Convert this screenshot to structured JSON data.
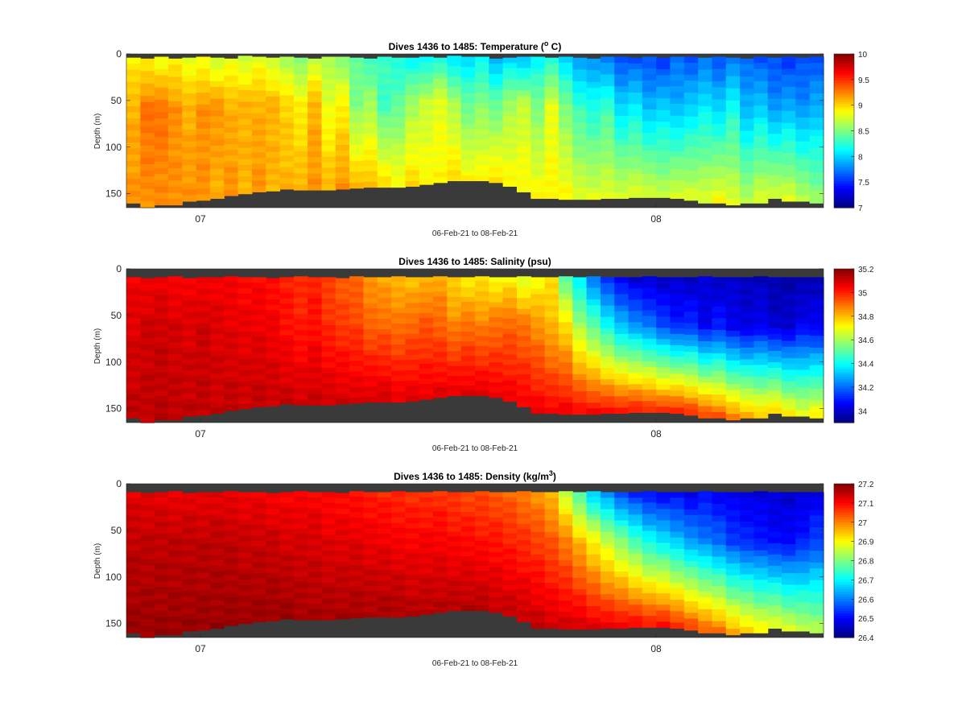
{
  "chart_data": [
    {
      "type": "heatmap",
      "title": "Dives 1436 to 1485: Temperature (",
      "title_sup": "o",
      "title_tail": " C)",
      "xlabel": "06-Feb-21 to 08-Feb-21",
      "ylabel": "Depth (m)",
      "x_ticks": [
        "07",
        "08"
      ],
      "y_ticks": [
        "0",
        "50",
        "100",
        "150"
      ],
      "y_reversed": true,
      "ylim": [
        0,
        165
      ],
      "colorbar": {
        "min": 7,
        "max": 10,
        "ticks": [
          "10",
          "9.5",
          "9",
          "8.5",
          "8",
          "7.5",
          "7"
        ],
        "colormap": "jet"
      },
      "background_color": "#3a3a3a",
      "columns": 50,
      "surface_values": [
        8.9,
        8.9,
        8.8,
        8.9,
        8.8,
        8.8,
        8.7,
        8.8,
        8.7,
        8.8,
        8.7,
        8.6,
        8.5,
        8.7,
        8.6,
        8.5,
        8.4,
        8.3,
        8.3,
        8.2,
        8.1,
        8.1,
        8.2,
        8.0,
        8.0,
        8.1,
        7.9,
        8.0,
        7.9,
        8.1,
        8.2,
        8.0,
        7.8,
        7.8,
        7.7,
        7.6,
        7.6,
        7.6,
        7.5,
        7.7,
        7.6,
        7.7,
        7.6,
        7.7,
        7.7,
        7.6,
        7.6,
        7.5,
        7.6,
        7.6
      ],
      "mid_values": [
        9.1,
        9.3,
        9.3,
        9.2,
        9.1,
        9.2,
        9.2,
        9.1,
        9.1,
        9.1,
        9.1,
        9.0,
        8.9,
        9.1,
        8.8,
        8.9,
        8.5,
        8.6,
        8.3,
        8.4,
        8.6,
        8.7,
        8.8,
        8.6,
        8.4,
        8.5,
        8.4,
        8.6,
        8.7,
        8.5,
        8.8,
        8.5,
        8.3,
        8.2,
        8.3,
        8.0,
        8.1,
        7.9,
        8.0,
        7.9,
        8.0,
        8.1,
        8.0,
        8.2,
        7.9,
        8.0,
        7.8,
        7.9,
        7.8,
        7.9
      ],
      "deep_values": [
        9.2,
        9.2,
        9.2,
        9.2,
        9.2,
        9.2,
        9.1,
        9.2,
        9.1,
        9.2,
        9.1,
        9.1,
        9.1,
        9.2,
        9.1,
        9.2,
        9.1,
        9.1,
        9.0,
        8.9,
        9.0,
        8.9,
        8.9,
        9.0,
        8.9,
        8.9,
        9.0,
        8.9,
        8.9,
        8.9,
        8.9,
        8.9,
        8.8,
        8.8,
        8.8,
        8.8,
        8.8,
        8.8,
        8.7,
        8.8,
        8.8,
        8.8,
        8.9,
        8.8,
        8.7,
        8.8,
        8.8,
        8.8,
        8.7,
        8.6
      ],
      "bottom_depth": [
        160,
        165,
        162,
        162,
        158,
        157,
        155,
        152,
        150,
        148,
        147,
        145,
        146,
        146,
        146,
        145,
        144,
        143,
        143,
        143,
        142,
        140,
        138,
        136,
        136,
        136,
        138,
        142,
        148,
        155,
        155,
        156,
        156,
        156,
        155,
        155,
        154,
        154,
        154,
        155,
        157,
        160,
        160,
        162,
        160,
        160,
        155,
        158,
        158,
        160
      ],
      "top_gap": [
        4,
        5,
        3,
        5,
        4,
        3,
        4,
        5,
        2,
        3,
        4,
        3,
        4,
        5,
        3,
        3,
        4,
        5,
        3,
        4,
        4,
        3,
        4,
        2,
        3,
        3,
        5,
        4,
        3,
        3,
        4,
        3,
        4,
        5,
        3,
        3,
        4,
        3,
        4,
        3,
        3,
        4,
        3,
        4,
        5,
        3,
        4,
        3,
        4,
        3
      ]
    },
    {
      "type": "heatmap",
      "title": "Dives 1436 to 1485: Salinity (psu)",
      "title_sup": "",
      "title_tail": "",
      "xlabel": "06-Feb-21 to 08-Feb-21",
      "ylabel": "Depth (m)",
      "x_ticks": [
        "07",
        "08"
      ],
      "y_ticks": [
        "0",
        "50",
        "100",
        "150"
      ],
      "y_reversed": true,
      "ylim": [
        0,
        165
      ],
      "colorbar": {
        "min": 33.9,
        "max": 35.2,
        "ticks": [
          "35.2",
          "35",
          "34.8",
          "34.6",
          "34.4",
          "34.2",
          "34"
        ],
        "colormap": "jet"
      },
      "background_color": "#3a3a3a",
      "columns": 50,
      "surface_values": [
        35.05,
        35.05,
        35.06,
        35.04,
        35.05,
        35.04,
        35.05,
        35.04,
        35.03,
        35.03,
        35.02,
        35.0,
        34.98,
        35.0,
        34.95,
        34.92,
        34.9,
        34.85,
        34.82,
        34.8,
        34.78,
        34.8,
        34.82,
        34.76,
        34.72,
        34.74,
        34.7,
        34.72,
        34.65,
        34.7,
        34.75,
        34.5,
        34.35,
        34.2,
        34.1,
        34.05,
        34.0,
        34.0,
        33.98,
        34.0,
        33.98,
        34.0,
        33.98,
        33.99,
        33.98,
        33.97,
        33.96,
        33.95,
        33.96,
        33.97
      ],
      "mid_values": [
        35.08,
        35.1,
        35.1,
        35.09,
        35.08,
        35.1,
        35.08,
        35.07,
        35.06,
        35.06,
        35.05,
        35.02,
        35.0,
        35.02,
        34.98,
        34.96,
        34.95,
        34.9,
        34.9,
        34.88,
        34.9,
        34.92,
        34.9,
        34.85,
        34.88,
        34.85,
        34.88,
        34.9,
        34.88,
        34.85,
        34.8,
        34.75,
        34.6,
        34.5,
        34.4,
        34.3,
        34.25,
        34.2,
        34.15,
        34.1,
        34.12,
        34.05,
        34.1,
        34.05,
        34.02,
        34.05,
        34.0,
        34.0,
        34.05,
        34.05
      ],
      "deep_values": [
        35.12,
        35.12,
        35.13,
        35.12,
        35.12,
        35.12,
        35.11,
        35.12,
        35.11,
        35.12,
        35.11,
        35.11,
        35.1,
        35.11,
        35.1,
        35.1,
        35.09,
        35.1,
        35.1,
        35.08,
        35.08,
        35.07,
        35.08,
        35.08,
        35.08,
        35.08,
        35.07,
        35.06,
        35.06,
        35.06,
        35.05,
        35.06,
        35.05,
        35.05,
        35.04,
        35.04,
        35.03,
        35.02,
        35.0,
        35.02,
        35.0,
        34.98,
        34.95,
        34.9,
        34.85,
        34.8,
        34.8,
        34.75,
        34.7,
        34.75
      ],
      "bottom_depth": [
        160,
        165,
        162,
        162,
        158,
        157,
        155,
        152,
        150,
        148,
        147,
        145,
        146,
        146,
        146,
        145,
        144,
        143,
        143,
        143,
        142,
        140,
        138,
        136,
        136,
        136,
        138,
        142,
        148,
        155,
        155,
        156,
        156,
        156,
        155,
        155,
        154,
        154,
        154,
        155,
        157,
        160,
        160,
        162,
        160,
        160,
        155,
        158,
        158,
        160
      ],
      "top_gap": [
        9,
        10,
        9,
        8,
        10,
        9,
        9,
        8,
        9,
        9,
        10,
        9,
        8,
        9,
        9,
        10,
        8,
        9,
        9,
        8,
        9,
        9,
        8,
        9,
        9,
        8,
        9,
        9,
        8,
        9,
        9,
        8,
        9,
        8,
        9,
        9,
        9,
        8,
        9,
        9,
        9,
        8,
        9,
        9,
        9,
        8,
        9,
        9,
        9,
        9
      ]
    },
    {
      "type": "heatmap",
      "title": "Dives 1436 to 1485: Density (kg/m",
      "title_sup": "3",
      "title_tail": ")",
      "xlabel": "06-Feb-21 to 08-Feb-21",
      "ylabel": "Depth (m)",
      "x_ticks": [
        "07",
        "08"
      ],
      "y_ticks": [
        "0",
        "50",
        "100",
        "150"
      ],
      "y_reversed": true,
      "ylim": [
        0,
        165
      ],
      "colorbar": {
        "min": 26.4,
        "max": 27.2,
        "ticks": [
          "27.2",
          "27.1",
          "27",
          "26.9",
          "26.8",
          "26.7",
          "26.6",
          "26.5",
          "26.4"
        ],
        "colormap": "jet"
      },
      "background_color": "#3a3a3a",
      "columns": 50,
      "surface_values": [
        27.12,
        27.12,
        27.12,
        27.11,
        27.12,
        27.11,
        27.12,
        27.11,
        27.11,
        27.11,
        27.1,
        27.1,
        27.1,
        27.1,
        27.09,
        27.09,
        27.08,
        27.08,
        27.07,
        27.07,
        27.06,
        27.06,
        27.06,
        27.05,
        27.04,
        27.04,
        27.03,
        27.02,
        27.0,
        26.98,
        26.95,
        26.85,
        26.75,
        26.65,
        26.6,
        26.55,
        26.52,
        26.5,
        26.49,
        26.5,
        26.48,
        26.5,
        26.49,
        26.48,
        26.48,
        26.47,
        26.47,
        26.46,
        26.47,
        26.48
      ],
      "mid_values": [
        27.15,
        27.15,
        27.15,
        27.15,
        27.15,
        27.15,
        27.15,
        27.15,
        27.14,
        27.14,
        27.14,
        27.13,
        27.13,
        27.13,
        27.12,
        27.12,
        27.12,
        27.11,
        27.11,
        27.1,
        27.1,
        27.1,
        27.1,
        27.09,
        27.09,
        27.08,
        27.08,
        27.07,
        27.06,
        27.05,
        27.03,
        27.0,
        26.95,
        26.9,
        26.85,
        26.8,
        26.75,
        26.7,
        26.68,
        26.65,
        26.62,
        26.6,
        26.58,
        26.55,
        26.53,
        26.52,
        26.5,
        26.5,
        26.52,
        26.55
      ],
      "deep_values": [
        27.18,
        27.18,
        27.18,
        27.18,
        27.18,
        27.18,
        27.18,
        27.18,
        27.18,
        27.18,
        27.18,
        27.18,
        27.17,
        27.17,
        27.17,
        27.17,
        27.17,
        27.17,
        27.17,
        27.17,
        27.16,
        27.16,
        27.16,
        27.16,
        27.16,
        27.16,
        27.15,
        27.15,
        27.15,
        27.15,
        27.14,
        27.14,
        27.14,
        27.13,
        27.12,
        27.12,
        27.11,
        27.1,
        27.1,
        27.08,
        27.06,
        27.04,
        27.02,
        26.98,
        26.95,
        26.92,
        26.9,
        26.88,
        26.86,
        26.85
      ],
      "bottom_depth": [
        160,
        165,
        162,
        162,
        158,
        157,
        155,
        152,
        150,
        148,
        147,
        145,
        146,
        146,
        146,
        145,
        144,
        143,
        143,
        143,
        142,
        140,
        138,
        136,
        136,
        136,
        138,
        142,
        148,
        155,
        155,
        156,
        156,
        156,
        155,
        155,
        154,
        154,
        154,
        155,
        157,
        160,
        160,
        162,
        160,
        160,
        155,
        158,
        158,
        160
      ],
      "top_gap": [
        9,
        10,
        9,
        8,
        10,
        9,
        9,
        8,
        9,
        9,
        10,
        9,
        8,
        9,
        9,
        10,
        8,
        9,
        9,
        8,
        9,
        9,
        8,
        9,
        9,
        8,
        9,
        9,
        8,
        9,
        9,
        8,
        9,
        8,
        9,
        9,
        9,
        8,
        9,
        9,
        9,
        8,
        9,
        9,
        9,
        8,
        9,
        9,
        9,
        9
      ]
    }
  ]
}
